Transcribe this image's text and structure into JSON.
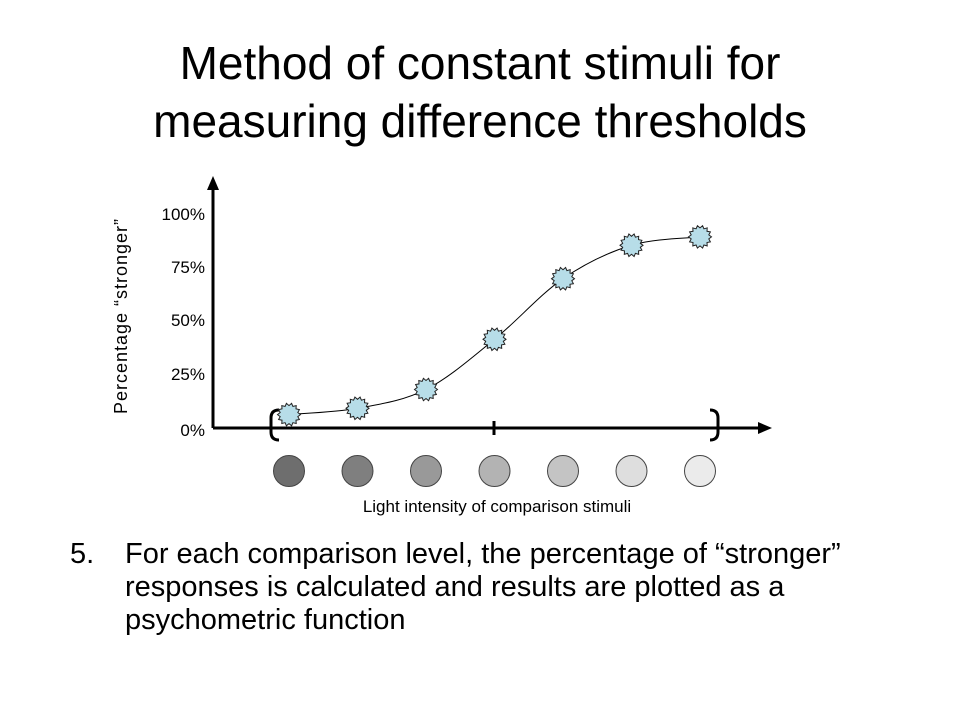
{
  "slide": {
    "title_line1": "Method of constant stimuli for",
    "title_line2": "measuring difference thresholds",
    "point": {
      "number": "5.",
      "text": "For each comparison level, the percentage of “stronger” responses is calculated and results are plotted as a psychometric function"
    }
  },
  "chart_data": {
    "type": "line",
    "title": "",
    "ylabel": "Percentage “stronger”",
    "xlabel": "Light intensity of comparison stimuli",
    "y_ticks": [
      "0%",
      "25%",
      "50%",
      "75%",
      "100%"
    ],
    "ylim": [
      0,
      100
    ],
    "x": [
      1,
      2,
      3,
      4,
      5,
      6,
      7
    ],
    "values": [
      5,
      8,
      17,
      41,
      70,
      86,
      90
    ],
    "comparison_stimuli_colors": [
      "#6e6e6e",
      "#7f7f7f",
      "#999999",
      "#b3b3b3",
      "#c4c4c4",
      "#dedede",
      "#ebebeb"
    ],
    "marker_color": "#b7dde8",
    "grid": false
  }
}
